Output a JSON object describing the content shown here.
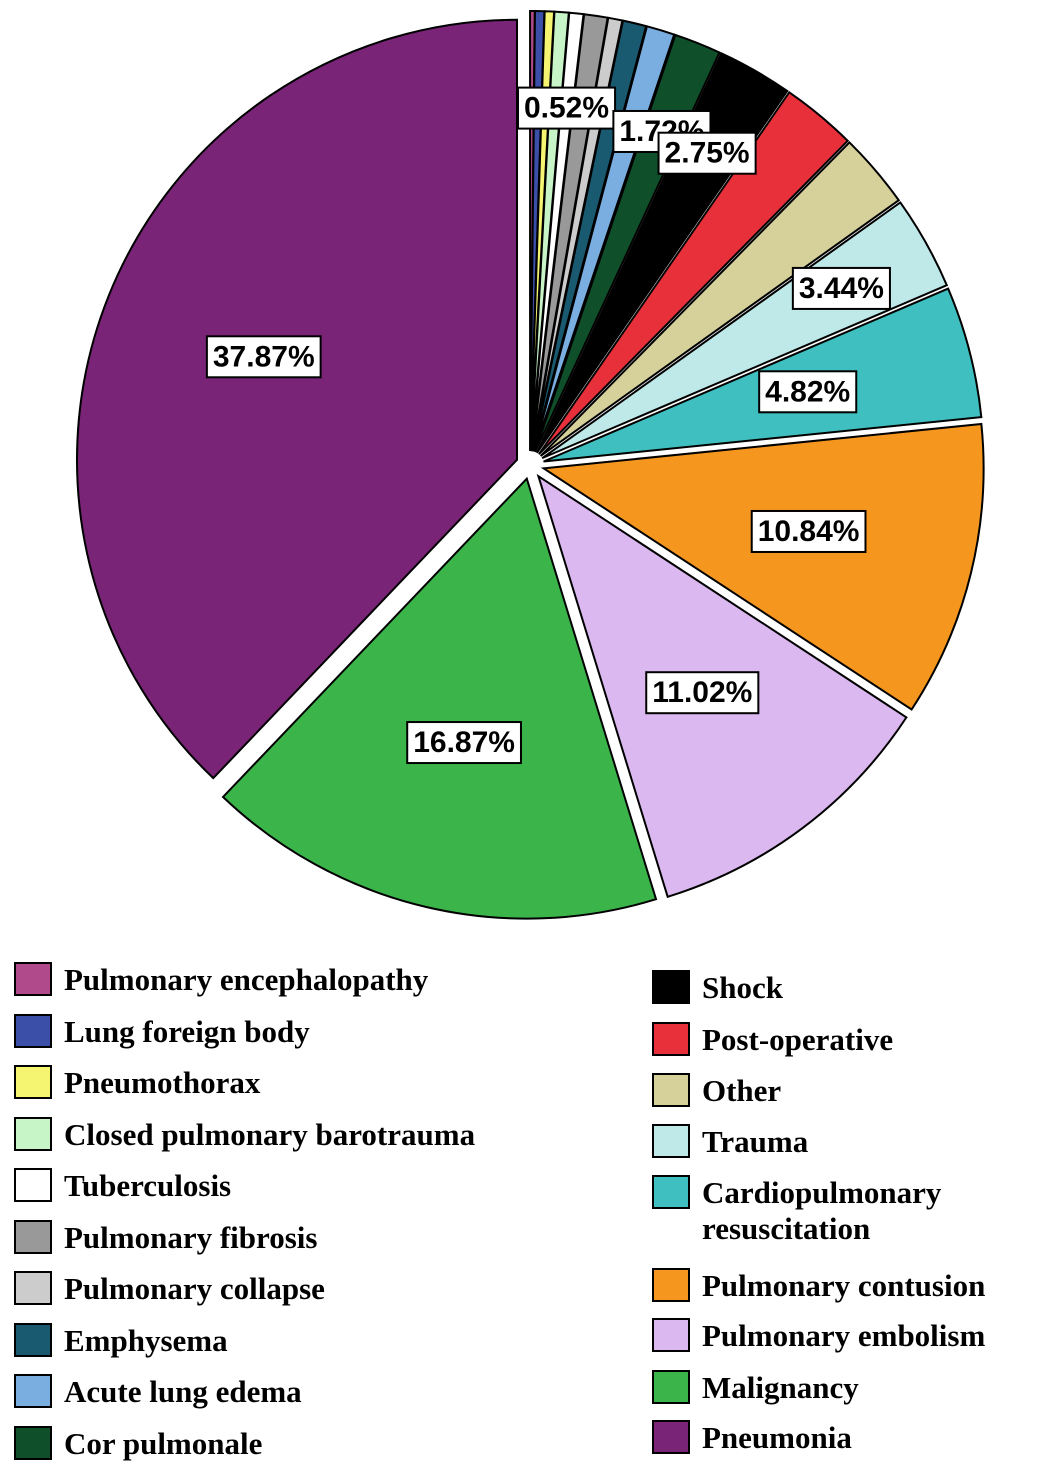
{
  "chart_data": {
    "type": "pie",
    "categories": [
      "Pulmonary encephalopathy",
      "Lung foreign body",
      "Pneumothorax",
      "Closed pulmonary barotrauma",
      "Tuberculosis",
      "Pulmonary fibrosis",
      "Pulmonary collapse",
      "Emphysema",
      "Acute lung edema",
      "Cor pulmonale",
      "Shock",
      "Post-operative",
      "Other",
      "Trauma",
      "Cardiopulmonary resuscitation",
      "Pulmonary contusion",
      "Pulmonary embolism",
      "Malignancy",
      "Pneumonia"
    ],
    "values": [
      0.17,
      0.34,
      0.34,
      0.52,
      0.52,
      0.86,
      0.52,
      0.86,
      1.03,
      1.72,
      2.75,
      2.75,
      2.75,
      3.44,
      4.82,
      10.84,
      11.02,
      16.87,
      37.87
    ],
    "value_labels": [
      null,
      null,
      null,
      null,
      "0.52%",
      null,
      null,
      null,
      null,
      "1.72%",
      "2.75%",
      null,
      null,
      "3.44%",
      "4.82%",
      "10.84%",
      "11.02%",
      "16.87%",
      "37.87%"
    ],
    "colors": [
      "#b04a8a",
      "#3b4fa8",
      "#f5f571",
      "#c8f5c8",
      "#ffffff",
      "#999999",
      "#cccccc",
      "#1a5a70",
      "#7aaee0",
      "#0f4f2a",
      "#000000",
      "#e8303a",
      "#d6d09a",
      "#bfe8e8",
      "#3fbfbf",
      "#f5971f",
      "#dbb8ef",
      "#3bb54a",
      "#7a2478"
    ]
  }
}
